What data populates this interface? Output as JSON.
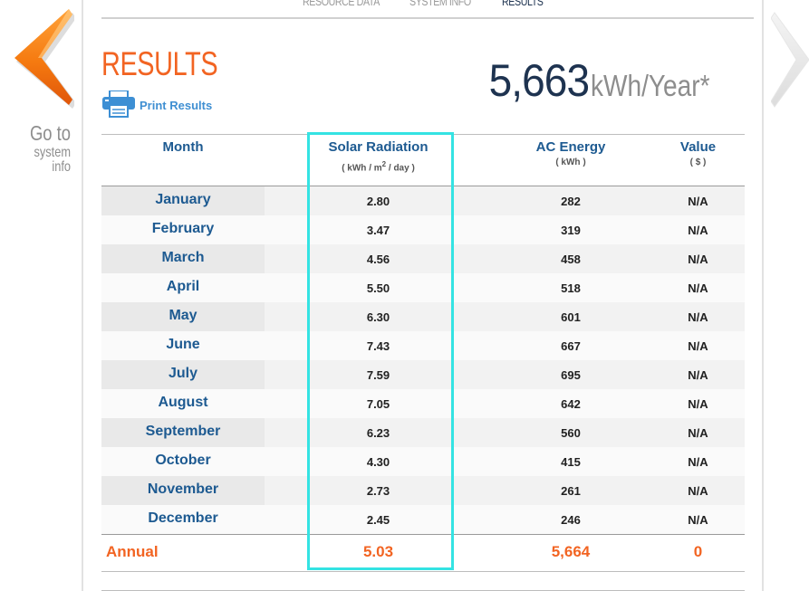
{
  "nav": {
    "tabs": [
      "RESOURCE DATA",
      "SYSTEM INFO",
      "RESULTS"
    ],
    "active": "RESULTS"
  },
  "go_to": {
    "line1": "Go to",
    "line2": "system info"
  },
  "header": {
    "title": "RESULTS",
    "print_label": "Print Results",
    "total_value": "5,663",
    "total_unit": "kWh/Year*"
  },
  "table": {
    "columns": {
      "month": "Month",
      "radiation": "Solar Radiation",
      "radiation_unit_prefix": "( kWh / m",
      "radiation_unit_sup": "2",
      "radiation_unit_suffix": " / day )",
      "ac_energy": "AC Energy",
      "ac_unit": "( kWh )",
      "value": "Value",
      "value_unit": "( $ )"
    },
    "rows": [
      {
        "month": "January",
        "radiation": "2.80",
        "ac": "282",
        "value": "N/A"
      },
      {
        "month": "February",
        "radiation": "3.47",
        "ac": "319",
        "value": "N/A"
      },
      {
        "month": "March",
        "radiation": "4.56",
        "ac": "458",
        "value": "N/A"
      },
      {
        "month": "April",
        "radiation": "5.50",
        "ac": "518",
        "value": "N/A"
      },
      {
        "month": "May",
        "radiation": "6.30",
        "ac": "601",
        "value": "N/A"
      },
      {
        "month": "June",
        "radiation": "7.43",
        "ac": "667",
        "value": "N/A"
      },
      {
        "month": "July",
        "radiation": "7.59",
        "ac": "695",
        "value": "N/A"
      },
      {
        "month": "August",
        "radiation": "7.05",
        "ac": "642",
        "value": "N/A"
      },
      {
        "month": "September",
        "radiation": "6.23",
        "ac": "560",
        "value": "N/A"
      },
      {
        "month": "October",
        "radiation": "4.30",
        "ac": "415",
        "value": "N/A"
      },
      {
        "month": "November",
        "radiation": "2.73",
        "ac": "261",
        "value": "N/A"
      },
      {
        "month": "December",
        "radiation": "2.45",
        "ac": "246",
        "value": "N/A"
      }
    ],
    "annual": {
      "label": "Annual",
      "radiation": "5.03",
      "ac": "5,664",
      "value": "0"
    }
  },
  "colors": {
    "accent_orange": "#f26422",
    "month_blue": "#1d5a91",
    "total_navy": "#1e3350",
    "highlight_cyan": "#34e3e3",
    "print_blue": "#3f8fd2"
  },
  "icons": {
    "prev": "chevron-left-icon",
    "next": "chevron-right-icon",
    "print": "printer-icon"
  }
}
